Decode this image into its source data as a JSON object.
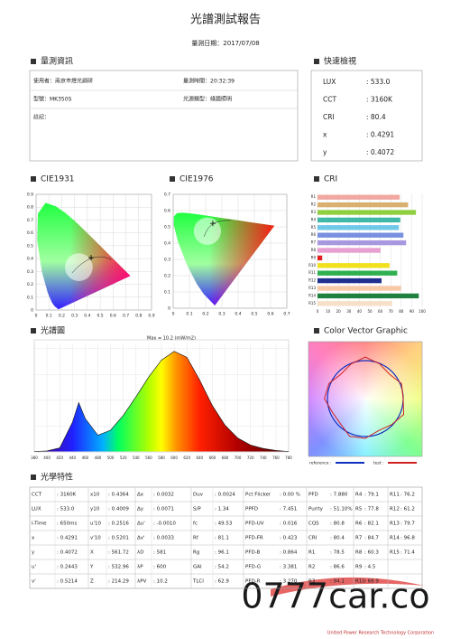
{
  "header": {
    "title": "光譜測試報告",
    "date": "量測日期：2017/07/08"
  },
  "measurement_info": {
    "heading": "量測資訊",
    "fields": [
      "使用者：南京市燈光調研",
      "量測時間：20:32:39",
      "型號：MK350S",
      "光源類型：綠牆照明",
      "註記："
    ]
  },
  "quick_view": {
    "heading": "快速檢視",
    "rows": [
      [
        "LUX",
        ": 533.0"
      ],
      [
        "CCT",
        ": 3160K"
      ],
      [
        "CRI",
        ": 80.4"
      ],
      [
        "x",
        ": 0.4291"
      ],
      [
        "y",
        ": 0.4072"
      ]
    ]
  },
  "chart_data": [
    {
      "type": "scatter",
      "title": "CIE1931",
      "x": [
        0.4291
      ],
      "values": [
        0.4072
      ],
      "xlim": [
        0,
        0.9
      ],
      "ylim": [
        0,
        0.9
      ],
      "xticks": [
        0,
        0.1,
        0.2,
        0.3,
        0.4,
        0.5,
        0.6,
        0.7,
        0.8,
        0.9
      ],
      "yticks": [
        0,
        0.1,
        0.2,
        0.3,
        0.4,
        0.5,
        0.6,
        0.7,
        0.8,
        0.9
      ],
      "grid": true,
      "color": "#000000"
    },
    {
      "type": "scatter",
      "title": "CIE1976",
      "x": [
        0.2443
      ],
      "values": [
        0.5214
      ],
      "xlim": [
        0,
        0.7
      ],
      "ylim": [
        0,
        0.7
      ],
      "xticks": [
        0,
        0.1,
        0.2,
        0.3,
        0.4,
        0.5,
        0.6,
        0.7
      ],
      "yticks": [
        0,
        0.1,
        0.2,
        0.3,
        0.4,
        0.5,
        0.6,
        0.7
      ],
      "grid": true,
      "color": "#000000"
    },
    {
      "type": "bar",
      "orientation": "horizontal",
      "title": "CRI",
      "categories": [
        "R1",
        "R2",
        "R3",
        "R4",
        "R5",
        "R6",
        "R7",
        "R8",
        "R9",
        "R10",
        "R11",
        "R12",
        "R13",
        "R14",
        "R15"
      ],
      "values": [
        78.5,
        86.6,
        94.1,
        79.1,
        77.8,
        82.1,
        84.7,
        60.3,
        4.5,
        68.9,
        76.2,
        61.2,
        79.7,
        96.8,
        71.4
      ],
      "colors": [
        "#f0a8a0",
        "#d8b070",
        "#90d040",
        "#40b8a8",
        "#70c8e8",
        "#7890e0",
        "#a898e0",
        "#e8a0d0",
        "#e02020",
        "#f0e020",
        "#30b050",
        "#203090",
        "#f8c8a8",
        "#208040",
        "#f8e0c8"
      ],
      "xlim": [
        0,
        100
      ],
      "xticks": [
        0,
        10,
        20,
        30,
        40,
        50,
        60,
        70,
        80,
        90,
        100
      ],
      "grid": true
    },
    {
      "type": "line",
      "title": "光譜圖",
      "annotation": "Max = 10.2 (mW/m2)",
      "x": [
        380,
        400,
        420,
        440,
        450,
        460,
        480,
        500,
        520,
        540,
        560,
        580,
        600,
        620,
        640,
        660,
        680,
        700,
        720,
        740,
        760,
        780
      ],
      "values": [
        0.05,
        0.1,
        0.4,
        3.0,
        5.0,
        3.4,
        1.7,
        2.2,
        3.7,
        5.6,
        7.6,
        9.3,
        10.2,
        9.6,
        7.3,
        4.7,
        2.7,
        1.4,
        0.7,
        0.35,
        0.15,
        0.05
      ],
      "xlim": [
        380,
        780
      ],
      "ylim": [
        0,
        11
      ],
      "xticks": [
        380,
        400,
        420,
        440,
        460,
        480,
        500,
        520,
        540,
        560,
        580,
        600,
        620,
        640,
        660,
        680,
        700,
        720,
        740,
        760,
        780
      ],
      "grid": true
    }
  ],
  "color_vector": {
    "heading": "Color Vector Graphic",
    "legend": [
      "reference :",
      "test :"
    ]
  },
  "optical_table": {
    "heading": "光學特性",
    "rows": [
      [
        [
          "CCT",
          ": 3160K"
        ],
        [
          "x10",
          ": 0.4364"
        ],
        [
          "Δx",
          ": 0.0032"
        ],
        [
          "Duv",
          ": 0.0024"
        ],
        [
          "Pct Flicker",
          ": 0.00 %"
        ],
        [
          "PFD",
          ": 7.880"
        ],
        [
          "R4",
          ": 79.1"
        ],
        [
          "R11",
          ": 76.2"
        ]
      ],
      [
        [
          "LUX",
          ": 533.0"
        ],
        [
          "y10",
          ": 0.4009"
        ],
        [
          "Δy",
          ": 0.0071"
        ],
        [
          "S/P",
          ": 1.34"
        ],
        [
          "PPFD",
          ": 7.451"
        ],
        [
          "Purity",
          ": 51.10%"
        ],
        [
          "R5",
          ": 77.8"
        ],
        [
          "R12",
          ": 61.2"
        ]
      ],
      [
        [
          "I-Time",
          ": 650ms"
        ],
        [
          "u'10",
          ": 0.2516"
        ],
        [
          "Δu'",
          ": -0.0010"
        ],
        [
          "fc",
          ": 49.53"
        ],
        [
          "PFD-UV",
          ": 0.016"
        ],
        [
          "CQS",
          ": 80.8"
        ],
        [
          "R6",
          ": 82.1"
        ],
        [
          "R13",
          ": 79.7"
        ]
      ],
      [
        [
          "x",
          ": 0.4291"
        ],
        [
          "v'10",
          ": 0.5201"
        ],
        [
          "Δv'",
          ": 0.0033"
        ],
        [
          "Rf",
          ": 81.1"
        ],
        [
          "PFD-FR",
          ": 0.423"
        ],
        [
          "CRI",
          ": 80.4"
        ],
        [
          "R7",
          ": 84.7"
        ],
        [
          "R14",
          ": 96.8"
        ]
      ],
      [
        [
          "y",
          ": 0.4072"
        ],
        [
          "X",
          ": 561.72"
        ],
        [
          "λD",
          ": 581"
        ],
        [
          "Rg",
          ": 96.1"
        ],
        [
          "PFD-B",
          ": 0.864"
        ],
        [
          "R1",
          ": 78.5"
        ],
        [
          "R8",
          ": 60.3"
        ],
        [
          "R15",
          ": 71.4"
        ]
      ],
      [
        [
          "u'",
          ": 0.2443"
        ],
        [
          "Y",
          ": 532.96"
        ],
        [
          "λP",
          ": 600"
        ],
        [
          "GAI",
          ": 54.2"
        ],
        [
          "PFD-G",
          ": 3.381"
        ],
        [
          "R2",
          ": 86.6"
        ],
        [
          "R9",
          ": 4.5"
        ]
      ],
      [
        [
          "v'",
          ": 0.5214"
        ],
        [
          "Z",
          ": 214.29"
        ],
        [
          "λPV",
          ": 10.2"
        ],
        [
          "TLCI",
          ": 62.9"
        ],
        [
          "PFD-R",
          ": 3.270"
        ],
        [
          "R3",
          ": 94.1"
        ],
        [
          "R10",
          ": 68.9"
        ]
      ]
    ]
  },
  "watermark": {
    "text": "0777car.co",
    "company": "United Power Research Technology Corporation"
  }
}
